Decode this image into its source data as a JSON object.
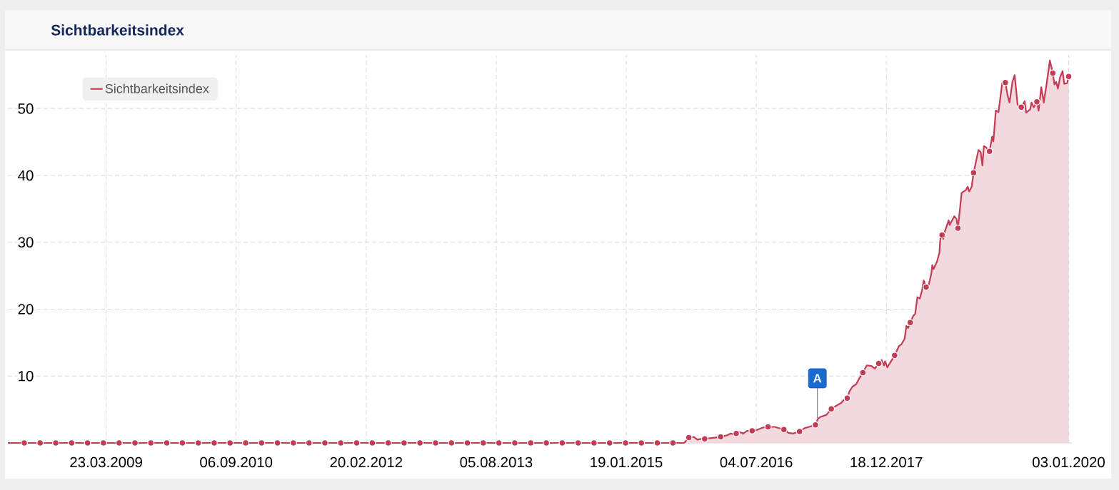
{
  "chart_data": {
    "type": "area",
    "title": "Sichtbarkeitsindex",
    "xlim": [
      "2008-02-15",
      "2020-01-16"
    ],
    "ylim": [
      0,
      58
    ],
    "xticks": [
      {
        "value": "2009-03-23",
        "label": "23.03.2009"
      },
      {
        "value": "2010-09-06",
        "label": "06.09.2010"
      },
      {
        "value": "2012-02-20",
        "label": "20.02.2012"
      },
      {
        "value": "2013-08-05",
        "label": "05.08.2013"
      },
      {
        "value": "2015-01-19",
        "label": "19.01.2015"
      },
      {
        "value": "2016-07-04",
        "label": "04.07.2016"
      },
      {
        "value": "2017-12-18",
        "label": "18.12.2017"
      },
      {
        "value": "2020-01-03",
        "label": "03.01.2020"
      }
    ],
    "yticks": [
      10,
      20,
      30,
      40,
      50
    ],
    "grid": true,
    "legend": "top left",
    "annotations": [
      {
        "text": "A",
        "x": "2017-03-11",
        "y": 3.7
      }
    ],
    "series": [
      {
        "name": "Sichtbarkeitsindex",
        "color": "#c33c54",
        "x": [
          "2008-02-15",
          "2015-09-13",
          "2015-10-02",
          "2015-10-23",
          "2015-11-06",
          "2015-11-20",
          "2015-12-06",
          "2015-12-28",
          "2016-02-09",
          "2016-03-03",
          "2016-03-22",
          "2016-03-31",
          "2016-04-13",
          "2016-04-28",
          "2016-05-12",
          "2016-05-27",
          "2016-06-17",
          "2016-07-03",
          "2016-07-31",
          "2016-08-21",
          "2016-09-17",
          "2016-10-25",
          "2016-11-12",
          "2016-12-01",
          "2016-12-28",
          "2017-01-17",
          "2017-02-05",
          "2017-03-03",
          "2017-03-13",
          "2017-03-24",
          "2017-04-17",
          "2017-05-07",
          "2017-05-29",
          "2017-06-17",
          "2017-06-26",
          "2017-07-11",
          "2017-07-20",
          "2017-08-01",
          "2017-08-17",
          "2017-08-30",
          "2017-09-13",
          "2017-09-29",
          "2017-10-18",
          "2017-11-01",
          "2017-11-17",
          "2017-11-29",
          "2017-12-08",
          "2017-12-13",
          "2017-12-22",
          "2018-01-06",
          "2018-01-21",
          "2018-02-08",
          "2018-02-17",
          "2018-03-03",
          "2018-03-10",
          "2018-03-17",
          "2018-03-26",
          "2018-04-07",
          "2018-04-15",
          "2018-04-24",
          "2018-05-04",
          "2018-05-13",
          "2018-05-20",
          "2018-05-30",
          "2018-06-10",
          "2018-06-20",
          "2018-06-24",
          "2018-06-29",
          "2018-07-13",
          "2018-07-23",
          "2018-07-27",
          "2018-08-03",
          "2018-08-08",
          "2018-08-15",
          "2018-08-30",
          "2018-09-03",
          "2018-09-22",
          "2018-10-01",
          "2018-10-07",
          "2018-10-22",
          "2018-11-08",
          "2018-11-16",
          "2018-11-22",
          "2018-12-02",
          "2018-12-10",
          "2018-12-30",
          "2019-01-08",
          "2019-01-15",
          "2019-01-21",
          "2019-01-30",
          "2019-02-13",
          "2019-02-24",
          "2019-03-01",
          "2019-03-11",
          "2019-03-22",
          "2019-04-06",
          "2019-04-19",
          "2019-04-28",
          "2019-05-06",
          "2019-05-18",
          "2019-05-27",
          "2019-06-08",
          "2019-06-23",
          "2019-07-07",
          "2019-07-13",
          "2019-07-30",
          "2019-08-04",
          "2019-08-13",
          "2019-08-26",
          "2019-09-02",
          "2019-09-13",
          "2019-09-23",
          "2019-10-06",
          "2019-10-18",
          "2019-10-30",
          "2019-11-06",
          "2019-11-13",
          "2019-11-20",
          "2019-11-29",
          "2019-12-09",
          "2019-12-16",
          "2019-12-28",
          "2020-01-03"
        ],
        "values": [
          0,
          0,
          0.8,
          0.9,
          0.5,
          0.6,
          0.6,
          0.7,
          0.9,
          1.1,
          1.4,
          1.3,
          1.4,
          1.6,
          1.4,
          1.8,
          1.8,
          1.9,
          2.3,
          2.4,
          2.4,
          2.0,
          1.5,
          1.4,
          1.7,
          2.2,
          2.4,
          2.7,
          3.6,
          3.9,
          4.2,
          5.1,
          5.6,
          6.0,
          6.4,
          6.7,
          7.7,
          8.4,
          8.8,
          9.7,
          10.5,
          11.6,
          11.5,
          11.1,
          11.9,
          12.4,
          11.6,
          12.2,
          11.3,
          12.2,
          13.1,
          14.5,
          14.7,
          15.6,
          17.5,
          17.2,
          18.0,
          19.0,
          19.3,
          21.8,
          21.6,
          22.8,
          24.3,
          23.3,
          23.7,
          25.3,
          26.6,
          26.0,
          27.1,
          28.4,
          30.5,
          31.1,
          30.5,
          31.7,
          33.3,
          32.6,
          33.9,
          33.5,
          32.1,
          37.4,
          37.8,
          38.3,
          37.6,
          38.3,
          40.4,
          43.8,
          43.5,
          41.5,
          44.4,
          44.2,
          43.6,
          45.8,
          45.1,
          49.7,
          49.5,
          53.8,
          53.9,
          52.0,
          50.9,
          54.0,
          55.0,
          50.6,
          50.2,
          51.1,
          49.4,
          49.9,
          50.9,
          50.2,
          51.0,
          49.7,
          53.2,
          50.9,
          54.0,
          57.2,
          55.3,
          53.6,
          54.0,
          53.0,
          54.7,
          55.6,
          53.7,
          53.8,
          54.8
        ]
      },
      {
        "type": "scatter",
        "color": "#c33c54",
        "marker": "circle",
        "x": [
          "2008-04-22",
          "2008-06-26",
          "2008-08-29",
          "2008-11-02",
          "2009-01-06",
          "2009-03-12",
          "2009-05-15",
          "2009-07-19",
          "2009-09-22",
          "2009-11-26",
          "2010-01-29",
          "2010-04-04",
          "2010-06-08",
          "2010-08-12",
          "2010-10-15",
          "2010-12-19",
          "2011-02-22",
          "2011-04-28",
          "2011-07-01",
          "2011-09-04",
          "2011-11-08",
          "2012-01-12",
          "2012-03-16",
          "2012-05-20",
          "2012-07-24",
          "2012-09-27",
          "2012-11-30",
          "2013-02-03",
          "2013-04-09",
          "2013-06-13",
          "2013-08-16",
          "2013-10-20",
          "2013-12-24",
          "2014-02-26",
          "2014-05-02",
          "2014-07-06",
          "2014-09-09",
          "2014-11-12",
          "2015-01-16",
          "2015-03-22",
          "2015-05-26",
          "2015-07-29",
          "2015-10-02",
          "2015-12-06",
          "2016-02-09",
          "2016-04-13",
          "2016-06-17",
          "2016-08-21",
          "2016-10-25",
          "2016-12-28",
          "2017-03-03",
          "2017-05-07",
          "2017-07-11",
          "2017-09-13",
          "2017-11-17",
          "2018-01-21",
          "2018-03-26",
          "2018-05-30",
          "2018-08-03",
          "2018-10-07",
          "2018-12-10",
          "2019-02-13",
          "2019-04-19",
          "2019-06-23",
          "2019-08-26",
          "2019-10-30",
          "2020-01-03"
        ],
        "values": [
          0,
          0,
          0,
          0,
          0,
          0,
          0,
          0,
          0,
          0,
          0,
          0,
          0,
          0,
          0,
          0,
          0,
          0,
          0,
          0,
          0,
          0,
          0,
          0,
          0,
          0,
          0,
          0,
          0,
          0,
          0,
          0,
          0,
          0,
          0,
          0,
          0,
          0,
          0,
          0,
          0,
          0,
          0.8,
          0.6,
          0.9,
          1.4,
          1.8,
          2.4,
          2.0,
          1.7,
          2.7,
          5.1,
          6.7,
          10.5,
          11.9,
          13.1,
          18.0,
          23.3,
          31.1,
          32.1,
          40.4,
          43.6,
          53.9,
          50.2,
          51.0,
          55.3,
          54.8
        ]
      }
    ]
  }
}
